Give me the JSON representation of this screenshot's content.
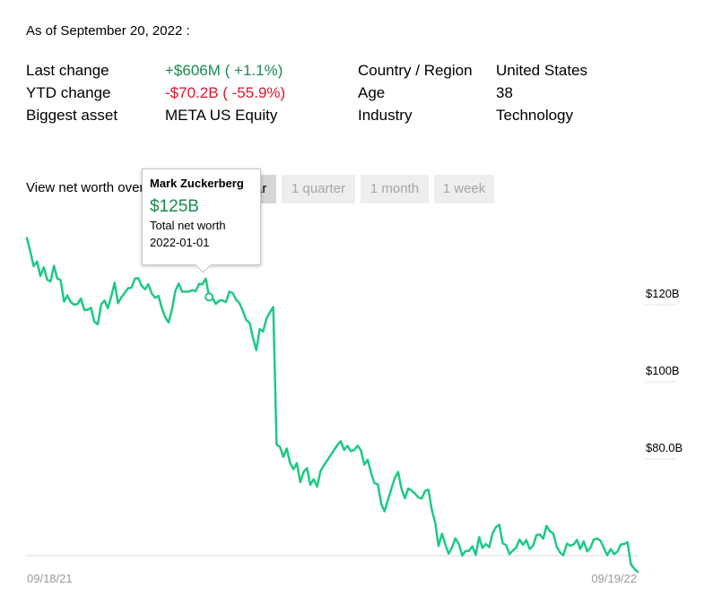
{
  "as_of": "As of September 20, 2022 :",
  "facts": {
    "last_change_label": "Last change",
    "last_change_value": "+$606M ( +1.1%)",
    "ytd_change_label": "YTD change",
    "ytd_change_value": "-$70.2B ( -55.9%)",
    "biggest_asset_label": "Biggest asset",
    "biggest_asset_value": "META US Equity",
    "country_label": "Country / Region",
    "country_value": "United States",
    "age_label": "Age",
    "age_value": "38",
    "industry_label": "Industry",
    "industry_value": "Technology"
  },
  "range_selector": {
    "label": "View net worth over",
    "buttons": [
      {
        "label": "1 year",
        "active": true
      },
      {
        "label": "1 quarter",
        "active": false
      },
      {
        "label": "1 month",
        "active": false
      },
      {
        "label": "1 week",
        "active": false
      }
    ]
  },
  "tooltip": {
    "name": "Mark Zuckerberg",
    "value": "$125B",
    "subtitle": "Total net worth",
    "date": "2022-01-01"
  },
  "colors": {
    "line": "#1ec985",
    "positive": "#1a8a4f",
    "negative": "#e0142c",
    "axis_text": "#000000",
    "date_text": "#999999"
  },
  "chart_data": {
    "type": "line",
    "title": "",
    "x_start": "09/18/21",
    "x_end": "09/19/22",
    "x_tick_labels": [
      "09/18/21",
      "09/19/22"
    ],
    "y_tick_labels": [
      "$120B",
      "$100B",
      "$80.0B"
    ],
    "y_ticks": [
      120,
      100,
      80
    ],
    "ylim": [
      48,
      128
    ],
    "grid": false,
    "series": [
      {
        "values": [
          137.3,
          133.8,
          130.0,
          131.2,
          127.5,
          129.7,
          126.5,
          126.0,
          130.1,
          126.8,
          126.4,
          120.8,
          122.4,
          120.7,
          120.0,
          120.2,
          121.6,
          118.6,
          118.7,
          119.2,
          115.6,
          114.9,
          120.1,
          121.1,
          119.1,
          122.2,
          125.7,
          120.4,
          121.9,
          123.1,
          124.3,
          124.4,
          126.8,
          126.9,
          124.9,
          124.0,
          125.3,
          122.9,
          121.8,
          122.3,
          119.1,
          116.7,
          115.4,
          118.8,
          123.6,
          125.5,
          123.4,
          123.4,
          123.4,
          123.8,
          123.5,
          125.4,
          125.3,
          126.8,
          122.0,
          121.7,
          120.2,
          121.1,
          121.1,
          120.7,
          123.4,
          123.0,
          121.3,
          120.4,
          118.4,
          116.0,
          115.3,
          111.4,
          108.2,
          113.7,
          113.1,
          116.4,
          118.0,
          119.4,
          83.7,
          83.1,
          80.5,
          82.7,
          78.9,
          77.3,
          78.9,
          74.0,
          76.6,
          77.6,
          73.3,
          74.7,
          72.8,
          76.8,
          78.3,
          79.6,
          80.9,
          82.3,
          83.5,
          84.6,
          82.3,
          83.4,
          82.0,
          82.3,
          83.4,
          82.2,
          78.5,
          79.8,
          76.3,
          73.7,
          73.4,
          68.3,
          66.4,
          69.4,
          72.2,
          75.0,
          76.6,
          72.3,
          69.8,
          72.3,
          71.8,
          71.0,
          70.0,
          69.7,
          71.7,
          72.0,
          66.8,
          63.4,
          57.4,
          60.6,
          57.8,
          55.4,
          57.1,
          59.4,
          57.9,
          54.9,
          56.1,
          56.1,
          57.3,
          55.1,
          59.7,
          56.9,
          57.9,
          57.1,
          60.7,
          62.3,
          62.9,
          58.1,
          57.6,
          55.3,
          56.2,
          57.0,
          59.1,
          57.7,
          58.9,
          56.6,
          57.5,
          60.2,
          60.4,
          59.3,
          62.6,
          61.2,
          60.7,
          57.2,
          55.7,
          55.0,
          58.0,
          57.5,
          57.8,
          59.0,
          56.6,
          58.6,
          56.0,
          56.9,
          59.1,
          59.3,
          58.8,
          56.8,
          55.0,
          56.6,
          55.3,
          55.9,
          57.8,
          57.9,
          58.4,
          52.6,
          51.5,
          50.7
        ]
      }
    ]
  }
}
